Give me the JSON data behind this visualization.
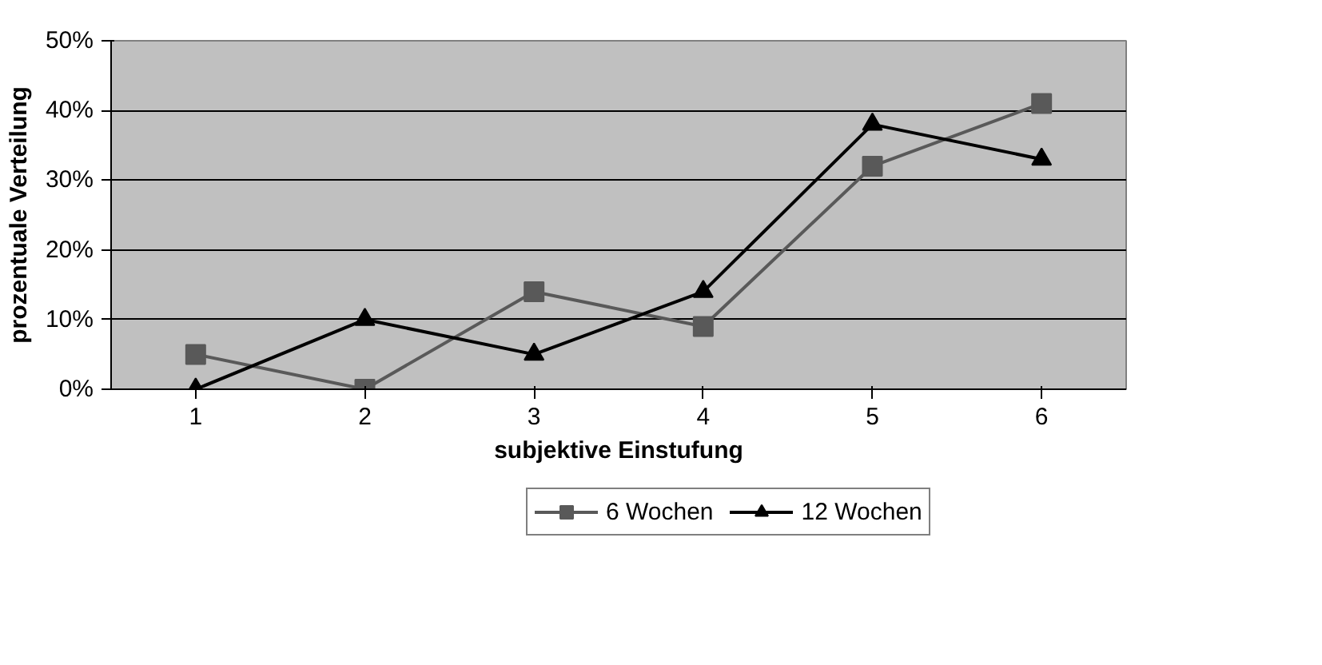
{
  "chart_data": {
    "type": "line",
    "xlabel": "subjektive Einstufung",
    "ylabel": "prozentuale Verteilung",
    "categories": [
      "1",
      "2",
      "3",
      "4",
      "5",
      "6"
    ],
    "series": [
      {
        "name": "6 Wochen",
        "color": "#595959",
        "marker": "square",
        "values": [
          5,
          0,
          14,
          9,
          32,
          41
        ]
      },
      {
        "name": "12 Wochen",
        "color": "#000000",
        "marker": "triangle",
        "values": [
          0,
          10,
          5,
          14,
          38,
          33
        ]
      }
    ],
    "ylim": [
      0,
      50
    ],
    "yticks": [
      {
        "value": 0,
        "label": "0%"
      },
      {
        "value": 10,
        "label": "10%"
      },
      {
        "value": 20,
        "label": "20%"
      },
      {
        "value": 30,
        "label": "30%"
      },
      {
        "value": 40,
        "label": "40%"
      },
      {
        "value": 50,
        "label": "50%"
      }
    ],
    "grid": "y",
    "legend": "bottom",
    "line_style": "solid"
  }
}
